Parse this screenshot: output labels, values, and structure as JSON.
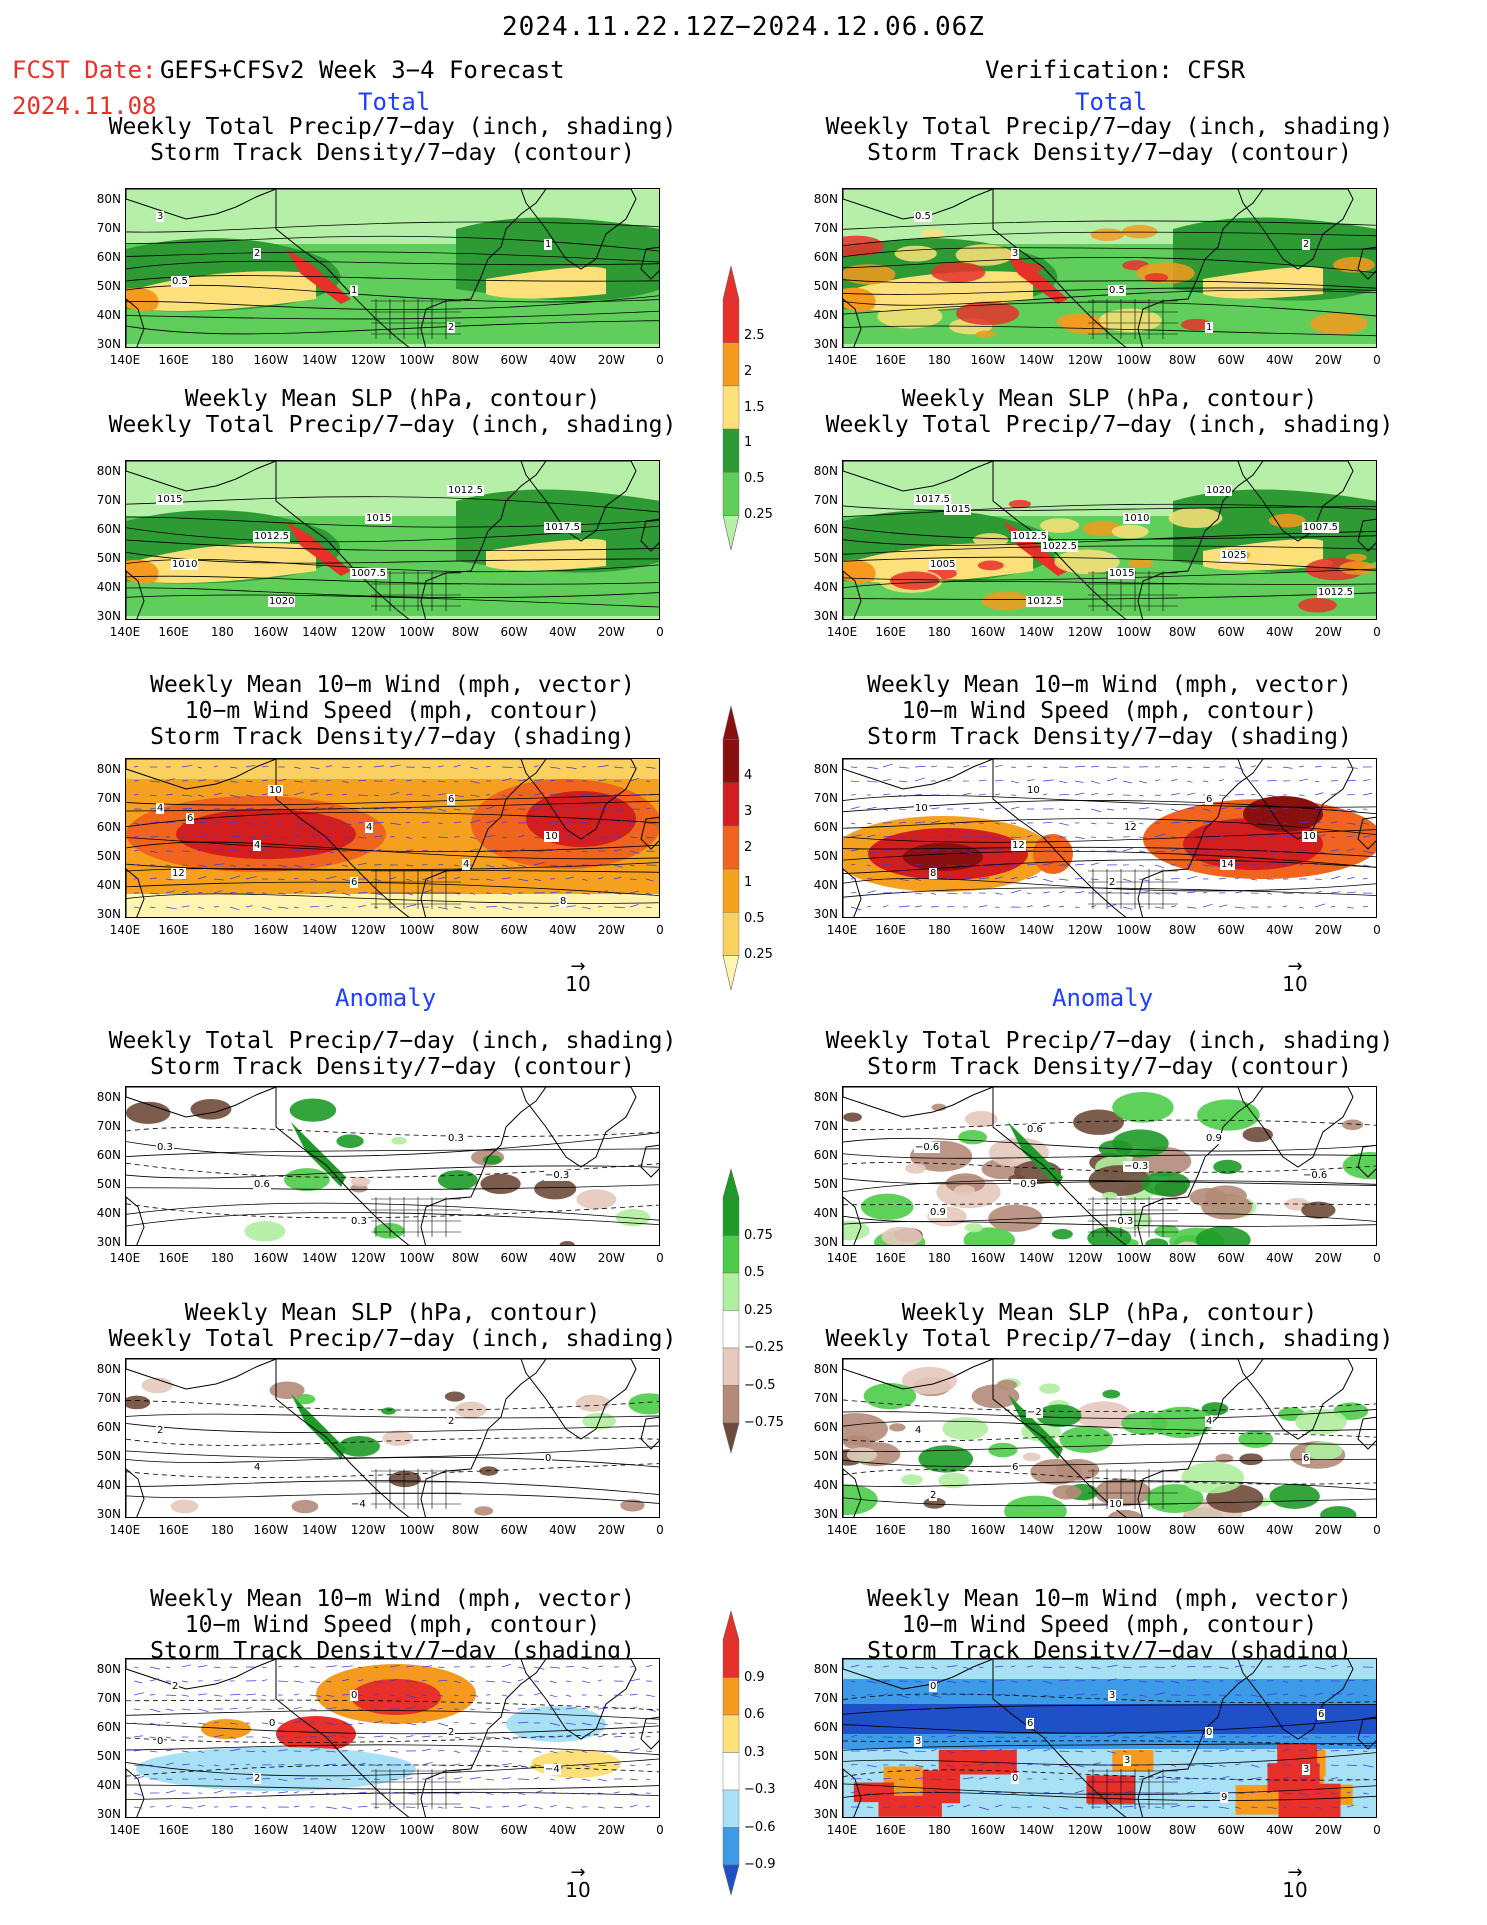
{
  "header": {
    "period": "2024.11.22.12Z−2024.12.06.06Z",
    "fcst_label": "FCST Date:",
    "fcst_model": "GEFS+CFSv2 Week 3−4 Forecast",
    "fcst_date": "2024.11.08",
    "verification": "Verification: CFSR"
  },
  "sections": {
    "total": "Total",
    "anomaly": "Anomaly"
  },
  "titles": {
    "precip_storm": [
      "Weekly Total Precip/7−day (inch, shading)",
      "Storm Track Density/7−day (contour)"
    ],
    "slp_precip": [
      "Weekly Mean SLP (hPa, contour)",
      "Weekly Total Precip/7−day (inch, shading)"
    ],
    "wind_storm": [
      "Weekly Mean 10−m Wind (mph, vector)",
      "10−m Wind Speed (mph, contour)",
      "Storm Track Density/7−day (shading)"
    ]
  },
  "axes": {
    "lat_ticks": [
      "80N",
      "70N",
      "60N",
      "50N",
      "40N",
      "30N"
    ],
    "lon_ticks": [
      "140E",
      "160E",
      "180",
      "160W",
      "140W",
      "120W",
      "100W",
      "80W",
      "60W",
      "40W",
      "20W",
      "0"
    ]
  },
  "vector_ref": "10",
  "colorbars": {
    "total_precip": {
      "labels": [
        "2.5",
        "2",
        "1.5",
        "1",
        "0.5",
        "0.25"
      ],
      "colors": [
        "#e8302a",
        "#f59a1e",
        "#fde07a",
        "#2e9a34",
        "#5fce5a",
        "#b6f0a8"
      ]
    },
    "total_storm": {
      "labels": [
        "4",
        "3",
        "2",
        "1",
        "0.5",
        "0.25"
      ],
      "colors": [
        "#8a1010",
        "#d21e1e",
        "#f0641e",
        "#f5a01e",
        "#fad060",
        "#fff5b0"
      ]
    },
    "anom_precip": {
      "labels": [
        "0.75",
        "0.5",
        "0.25",
        "−0.25",
        "−0.5",
        "−0.75"
      ],
      "colors": [
        "#1e9a28",
        "#4ccc48",
        "#b0eea0",
        "#ffffff",
        "#e6c8bc",
        "#b48a78",
        "#6e4a3a"
      ]
    },
    "anom_storm": {
      "labels": [
        "0.9",
        "0.6",
        "0.3",
        "−0.3",
        "−0.6",
        "−0.9"
      ],
      "colors": [
        "#e8302a",
        "#f59a1e",
        "#fde07a",
        "#ffffff",
        "#a8e0f5",
        "#3c9ae6",
        "#1e50c8"
      ]
    }
  },
  "contour_labels": {
    "fc_total_precip": [
      "3",
      "2",
      "1",
      "2",
      "1",
      "0.5"
    ],
    "ob_total_precip": [
      "0.5",
      "3",
      "0.5",
      "1",
      "2"
    ],
    "fc_total_slp": [
      "1015",
      "1012.5",
      "1007.5",
      "1012.5",
      "1017.5",
      "1010",
      "1020",
      "1015"
    ],
    "ob_total_slp": [
      "1017.5",
      "1012.5",
      "1015",
      "1020",
      "1007.5",
      "1005",
      "1012.5",
      "1010",
      "1025",
      "1012.5",
      "1015",
      "1022.5"
    ],
    "fc_total_wind": [
      "4",
      "4",
      "6",
      "6",
      "10",
      "12",
      "10",
      "4",
      "4",
      "8",
      "6"
    ],
    "ob_total_wind": [
      "10",
      "12",
      "2",
      "6",
      "10",
      "8",
      "10",
      "12",
      "14"
    ],
    "fc_anom_precip": [
      "0.3",
      "0.6",
      "0.3",
      "0.3",
      "−0.3"
    ],
    "ob_anom_precip": [
      "−0.6",
      "−0.9",
      "−0.3",
      "0.9",
      "−0.6",
      "0.9",
      "0.6",
      "−0.3"
    ],
    "fc_anom_slp": [
      "2",
      "4",
      "−4",
      "2",
      "0"
    ],
    "ob_anom_slp": [
      "4",
      "6",
      "10",
      "4",
      "6",
      "2",
      "−2"
    ],
    "fc_anom_wind": [
      "0",
      "2",
      "0",
      "2",
      "−4",
      "2",
      "0"
    ],
    "ob_anom_wind": [
      "3",
      "0",
      "3",
      "0",
      "3",
      "0",
      "6",
      "3",
      "9",
      "6"
    ]
  }
}
